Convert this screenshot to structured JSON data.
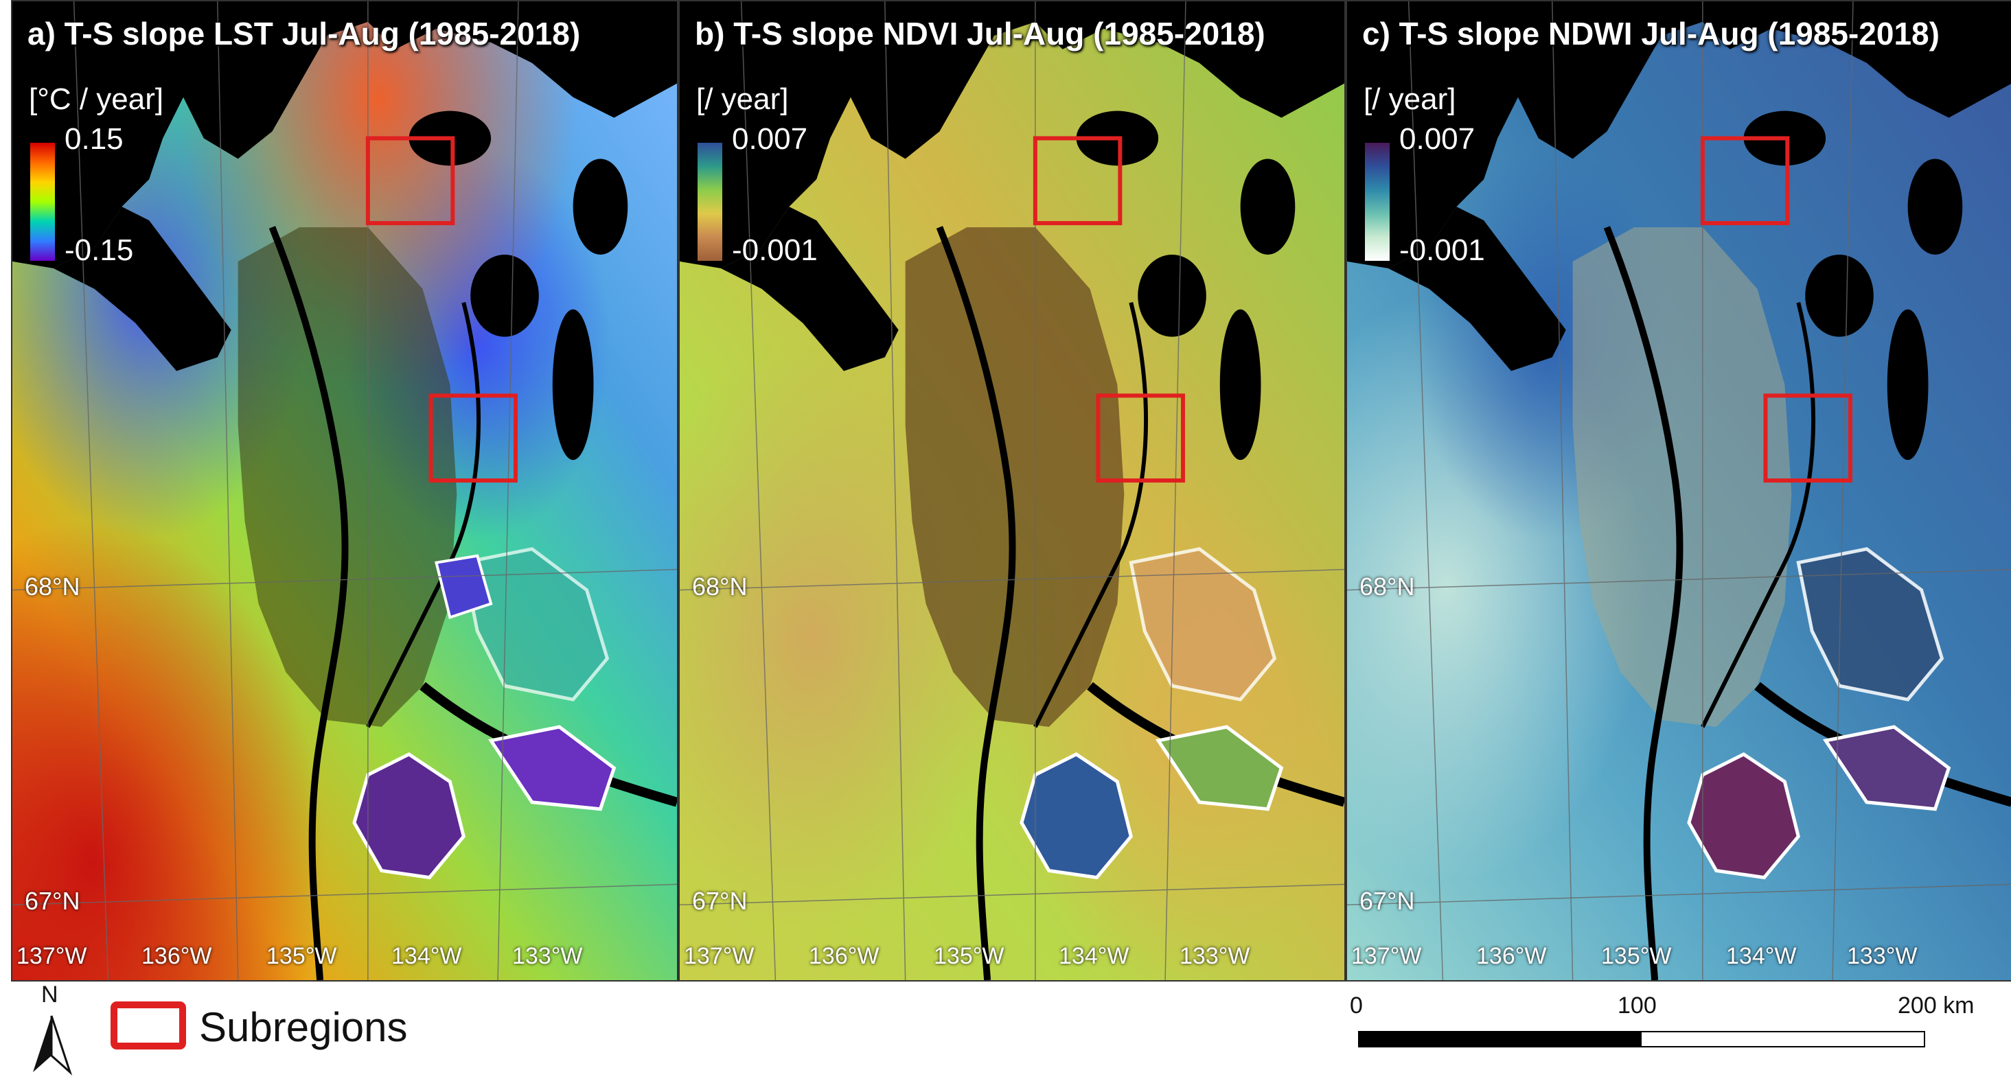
{
  "panels": [
    {
      "id": "a",
      "title": "a) T-S slope LST Jul-Aug (1985-2018)",
      "unit": "[°C / year]",
      "cbar_max": "0.15",
      "cbar_min": "-0.15",
      "colormap": [
        "#d70000",
        "#ff6a00",
        "#ffd400",
        "#a6ff00",
        "#00d4b0",
        "#2f7dff",
        "#6a00c8"
      ],
      "land_color": "#9ad64a",
      "latitudes": [
        "68°N",
        "67°N"
      ],
      "longitudes": [
        "137°W",
        "136°W",
        "135°W",
        "134°W",
        "133°W"
      ]
    },
    {
      "id": "b",
      "title": "b) T-S slope NDVI Jul-Aug (1985-2018)",
      "unit": "[/ year]",
      "cbar_max": "0.007",
      "cbar_min": "-0.001",
      "colormap": [
        "#2f4f9a",
        "#2e9a8a",
        "#8ccc4a",
        "#e0c94a",
        "#c98a50",
        "#a0603a"
      ],
      "land_color": "#a9cf4a",
      "latitudes": [
        "68°N",
        "67°N"
      ],
      "longitudes": [
        "137°W",
        "136°W",
        "135°W",
        "134°W",
        "133°W"
      ]
    },
    {
      "id": "c",
      "title": "c) T-S slope NDWI Jul-Aug (1985-2018)",
      "unit": "[/ year]",
      "cbar_max": "0.007",
      "cbar_min": "-0.001",
      "colormap": [
        "#4a1a5a",
        "#2f4f9a",
        "#2e8aaa",
        "#6ac0b0",
        "#c8ead0",
        "#ffffff"
      ],
      "land_color": "#4a8ab8",
      "latitudes": [
        "68°N",
        "67°N"
      ],
      "longitudes": [
        "137°W",
        "136°W",
        "135°W",
        "134°W",
        "133°W"
      ]
    }
  ],
  "legend": {
    "north": "N",
    "subregions_label": "Subregions",
    "subregion_color": "#e02020"
  },
  "scale": {
    "labels": [
      "0",
      "100",
      "200 km"
    ]
  }
}
